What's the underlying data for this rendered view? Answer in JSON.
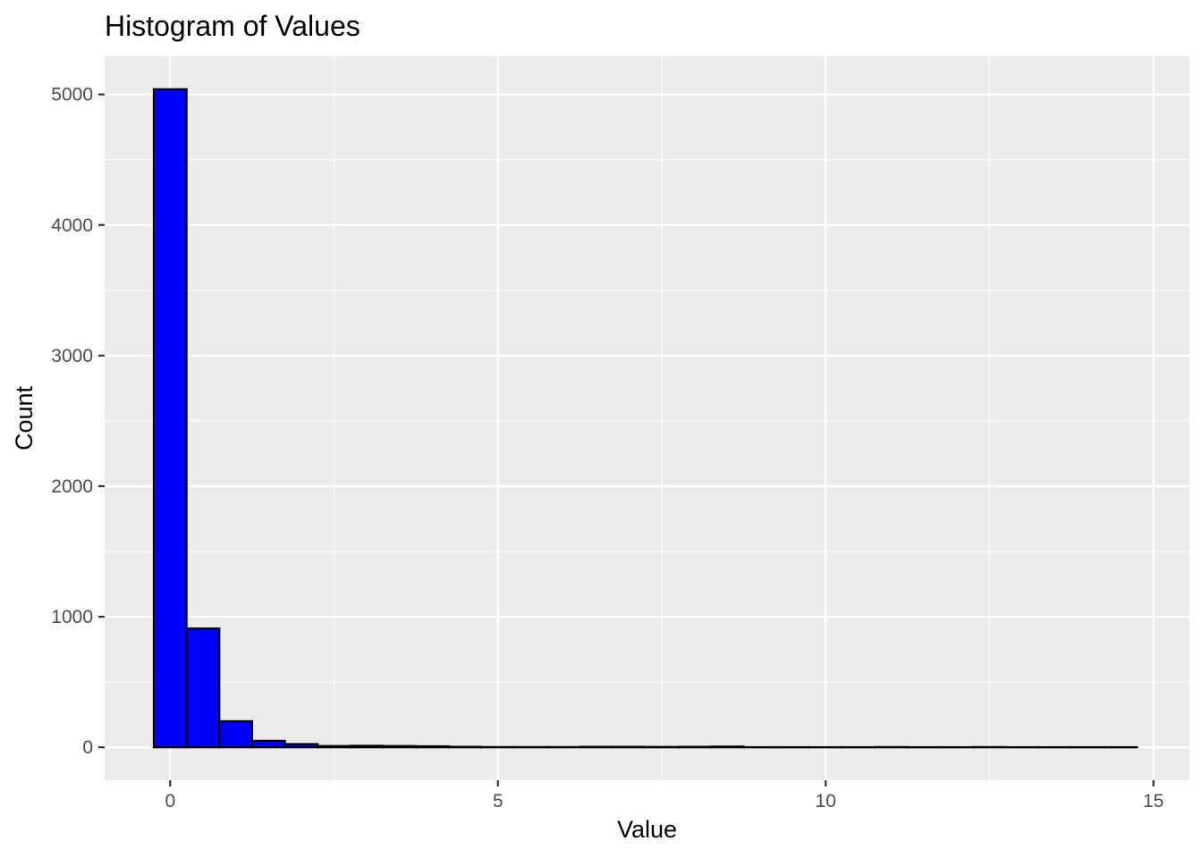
{
  "chart_data": {
    "type": "bar",
    "title": "Histogram of Values",
    "xlabel": "Value",
    "ylabel": "Count",
    "xlim": [
      -1.0,
      15.55
    ],
    "ylim": [
      -252,
      5292
    ],
    "x_ticks": [
      0,
      5,
      10,
      15
    ],
    "y_ticks": [
      0,
      1000,
      2000,
      3000,
      4000,
      5000
    ],
    "grid": true,
    "legend": "none",
    "bin_width": 0.5,
    "bins": [
      {
        "x": 0.0,
        "count": 5040
      },
      {
        "x": 0.5,
        "count": 910
      },
      {
        "x": 1.0,
        "count": 200
      },
      {
        "x": 1.5,
        "count": 50
      },
      {
        "x": 2.0,
        "count": 25
      },
      {
        "x": 2.5,
        "count": 10
      },
      {
        "x": 3.0,
        "count": 12
      },
      {
        "x": 3.5,
        "count": 10
      },
      {
        "x": 4.0,
        "count": 8
      },
      {
        "x": 4.5,
        "count": 4
      },
      {
        "x": 5.0,
        "count": 2
      },
      {
        "x": 5.5,
        "count": 2
      },
      {
        "x": 6.0,
        "count": 2
      },
      {
        "x": 6.5,
        "count": 4
      },
      {
        "x": 7.0,
        "count": 4
      },
      {
        "x": 7.5,
        "count": 3
      },
      {
        "x": 8.0,
        "count": 4
      },
      {
        "x": 8.5,
        "count": 6
      },
      {
        "x": 9.0,
        "count": 1
      },
      {
        "x": 9.5,
        "count": 1
      },
      {
        "x": 10.0,
        "count": 1
      },
      {
        "x": 10.5,
        "count": 1
      },
      {
        "x": 11.0,
        "count": 2
      },
      {
        "x": 11.5,
        "count": 1
      },
      {
        "x": 12.0,
        "count": 1
      },
      {
        "x": 12.5,
        "count": 2
      },
      {
        "x": 13.0,
        "count": 1
      },
      {
        "x": 13.5,
        "count": 1
      },
      {
        "x": 14.0,
        "count": 1
      },
      {
        "x": 14.5,
        "count": 1
      }
    ],
    "colors": {
      "fill": "#0000ff",
      "outline": "#000000",
      "panel": "#ebebeb",
      "grid": "#ffffff"
    }
  }
}
